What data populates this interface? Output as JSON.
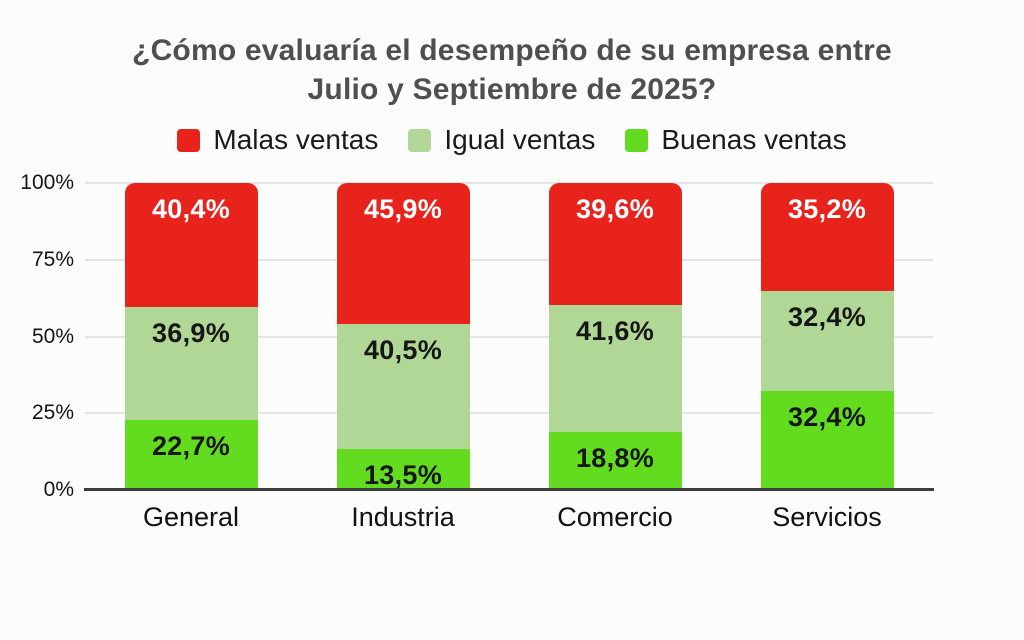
{
  "title": {
    "line1": "¿Cómo evaluaría el desempeño de su empresa entre",
    "line2": "Julio y Septiembre de 2025?"
  },
  "colors": {
    "background": "#fcfcfc",
    "title_text": "#4f4f4f",
    "axis_text": "#141414",
    "gridline": "#e4e4e4",
    "baseline": "#3d3d3d",
    "malas_ventas": "#e8231c",
    "igual_ventas": "#b0d795",
    "buenas_ventas": "#63dc20"
  },
  "chart_data": {
    "type": "bar",
    "variant": "stacked-percent",
    "title": "¿Cómo evaluaría el desempeño de su empresa entre Julio y Septiembre de 2025?",
    "categories": [
      "General",
      "Industria",
      "Comercio",
      "Servicios"
    ],
    "series": [
      {
        "name": "Malas ventas",
        "color": "#e8231c",
        "label_color": "#ffffff",
        "values": [
          40.4,
          45.9,
          39.6,
          35.2
        ],
        "display_labels": [
          "40,4%",
          "45,9%",
          "39,6%",
          "35,2%"
        ]
      },
      {
        "name": "Igual ventas",
        "color": "#b0d795",
        "label_color": "#161616",
        "values": [
          36.9,
          40.5,
          41.6,
          32.4
        ],
        "display_labels": [
          "36,9%",
          "40,5%",
          "41,6%",
          "32,4%"
        ]
      },
      {
        "name": "Buenas ventas",
        "color": "#63dc20",
        "label_color": "#161616",
        "values": [
          22.7,
          13.5,
          18.8,
          32.4
        ],
        "display_labels": [
          "22,7%",
          "13,5%",
          "18,8%",
          "32,4%"
        ]
      }
    ],
    "stack_order_top_to_bottom": [
      "Malas ventas",
      "Igual ventas",
      "Buenas ventas"
    ],
    "y_axis": {
      "ticks": [
        "100%",
        "75%",
        "50%",
        "25%",
        "0%"
      ],
      "min": 0,
      "max": 100,
      "unit": "%"
    },
    "xlabel": "",
    "ylabel": "",
    "grid": true,
    "legend_position": "top"
  }
}
